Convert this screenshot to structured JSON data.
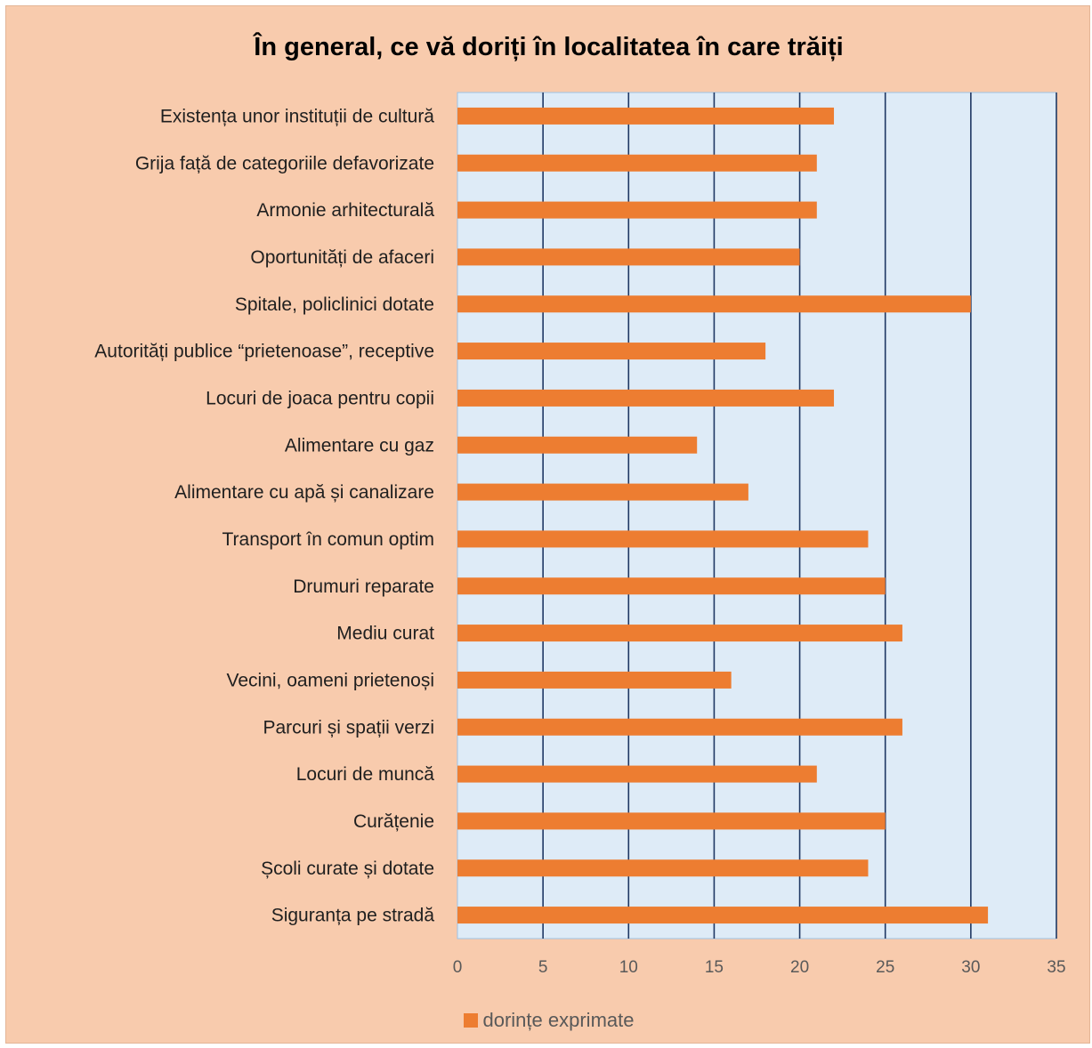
{
  "chart_data": {
    "type": "bar",
    "orientation": "horizontal",
    "title": "În general, ce vă doriți în localitatea în care trăiți",
    "categories": [
      "Existența unor instituții de cultură",
      "Grija față de categoriile defavorizate",
      "Armonie arhitecturală",
      "Oportunități de afaceri",
      "Spitale, policlinici dotate",
      "Autorități publice “prietenoase”, receptive",
      "Locuri de joaca pentru copii",
      "Alimentare cu gaz",
      "Alimentare cu apă și canalizare",
      "Transport în comun optim",
      "Drumuri reparate",
      "Mediu curat",
      "Vecini, oameni prietenoși",
      "Parcuri și spații verzi",
      "Locuri de muncă",
      "Curățenie",
      "Școli curate și dotate",
      "Siguranța pe stradă"
    ],
    "series": [
      {
        "name": "dorințe exprimate",
        "values": [
          22,
          21,
          21,
          20,
          30,
          18,
          22,
          14,
          17,
          24,
          25,
          26,
          16,
          26,
          21,
          25,
          24,
          31
        ]
      }
    ],
    "xlim": [
      0,
      35
    ],
    "xticks": [
      "0",
      "5",
      "10",
      "15",
      "20",
      "25",
      "30",
      "35"
    ],
    "grid": true,
    "legend_position": "bottom",
    "colors": {
      "background": "#f8cbad",
      "plot_area": "#deebf7",
      "bar": "#ed7d31",
      "gridline": "#1f3864"
    }
  }
}
